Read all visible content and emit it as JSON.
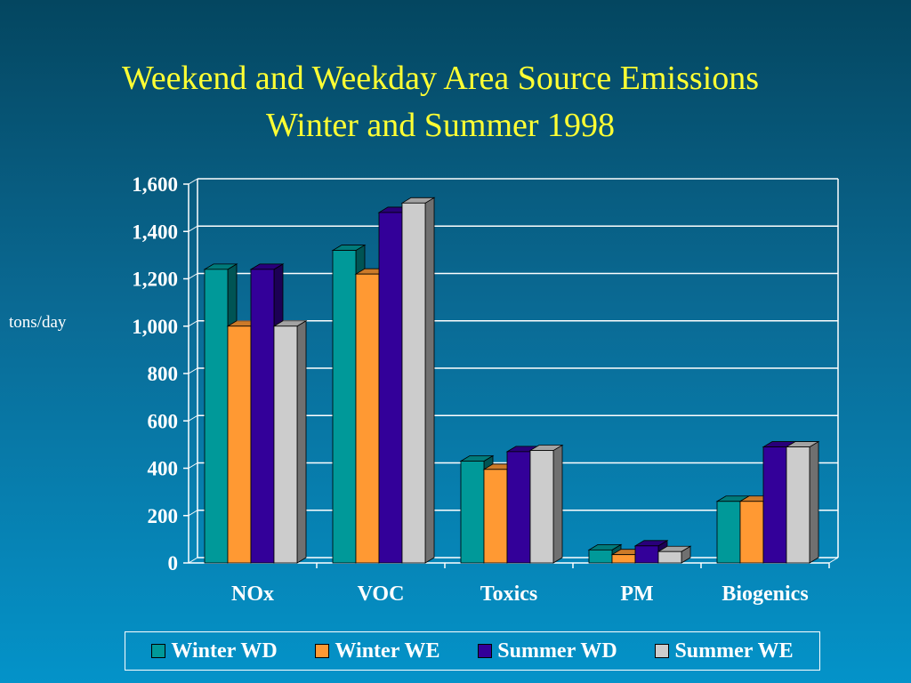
{
  "title_line1": "Weekend and Weekday Area Source Emissions",
  "title_line2": "Winter and Summer 1998",
  "ylabel": "tons/day",
  "colors": {
    "series": [
      "#009999",
      "#ff9933",
      "#330099",
      "#cccccc"
    ],
    "grid": "#ffffff",
    "text": "#ffffff",
    "title": "#ffff33"
  },
  "chart_data": {
    "type": "bar",
    "title": "Weekend and Weekday Area Source Emissions Winter and Summer 1998",
    "xlabel": "",
    "ylabel": "tons/day",
    "ylim": [
      0,
      1600
    ],
    "yticks": [
      0,
      200,
      400,
      600,
      800,
      1000,
      1200,
      1400,
      1600
    ],
    "ytick_labels": [
      "0",
      "200",
      "400",
      "600",
      "800",
      "1,000",
      "1,200",
      "1,400",
      "1,600"
    ],
    "categories": [
      "NOx",
      "VOC",
      "Toxics",
      "PM",
      "Biogenics"
    ],
    "series": [
      {
        "name": "Winter WD",
        "values": [
          1240,
          1320,
          430,
          55,
          260
        ]
      },
      {
        "name": "Winter WE",
        "values": [
          1000,
          1220,
          395,
          35,
          260
        ]
      },
      {
        "name": "Summer WD",
        "values": [
          1240,
          1480,
          470,
          72,
          490
        ]
      },
      {
        "name": "Summer WE",
        "values": [
          1000,
          1520,
          475,
          48,
          490
        ]
      }
    ],
    "grid": true,
    "legend_position": "bottom",
    "style": "3d"
  }
}
